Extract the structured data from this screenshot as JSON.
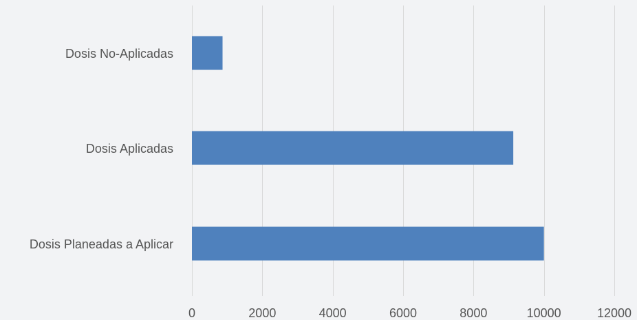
{
  "chart_data": {
    "type": "bar",
    "orientation": "horizontal",
    "categories": [
      "Dosis No-Aplicadas",
      "Dosis Aplicadas",
      "Dosis Planeadas a Aplicar"
    ],
    "values": [
      870,
      9130,
      10000
    ],
    "xlim": [
      0,
      12000
    ],
    "xticks": [
      0,
      2000,
      4000,
      6000,
      8000,
      10000,
      12000
    ],
    "xtick_labels": [
      "0",
      "2000",
      "4000",
      "6000",
      "8000",
      "10000",
      "12000"
    ],
    "grid": "vertical",
    "legend": "none",
    "colors": {
      "bar": "#4f81bd",
      "background": "#f2f3f5",
      "grid": "#d9d9d9",
      "text": "#555555"
    }
  }
}
